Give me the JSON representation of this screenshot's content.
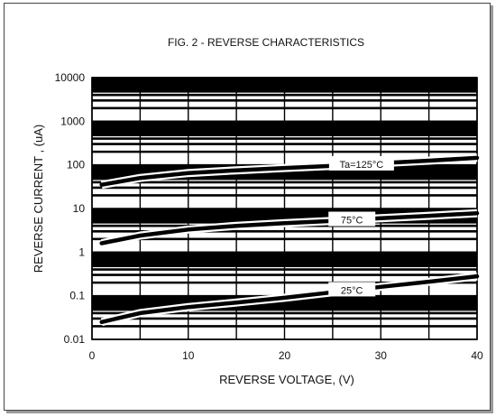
{
  "chart_data": {
    "type": "line",
    "title": "FIG. 2 - REVERSE CHARACTERISTICS",
    "xlabel": "REVERSE VOLTAGE, (V)",
    "ylabel": "REVERSE CURRENT , (uA)",
    "xlim": [
      0,
      40
    ],
    "ylim": [
      0.01,
      10000
    ],
    "yscale": "log",
    "grid": true,
    "x_ticks": [
      "0",
      "10",
      "20",
      "30",
      "40"
    ],
    "y_ticks": [
      "0.01",
      "0.1",
      "1",
      "10",
      "100",
      "1000",
      "10000"
    ],
    "series": [
      {
        "name": "Ta=125°C",
        "label": "Ta=125°C",
        "x": [
          1,
          5,
          10,
          15,
          20,
          25,
          30,
          35,
          40
        ],
        "y": [
          35,
          50,
          65,
          75,
          85,
          95,
          110,
          125,
          145
        ]
      },
      {
        "name": "75°C",
        "label": "75°C",
        "x": [
          1,
          5,
          10,
          15,
          20,
          25,
          30,
          35,
          40
        ],
        "y": [
          1.6,
          2.4,
          3.3,
          4.0,
          4.6,
          5.2,
          6.0,
          6.8,
          7.8
        ]
      },
      {
        "name": "25°C",
        "label": "25°C",
        "x": [
          1,
          5,
          10,
          15,
          20,
          25,
          30,
          35,
          40
        ],
        "y": [
          0.025,
          0.04,
          0.055,
          0.07,
          0.09,
          0.12,
          0.16,
          0.21,
          0.28
        ]
      }
    ]
  }
}
